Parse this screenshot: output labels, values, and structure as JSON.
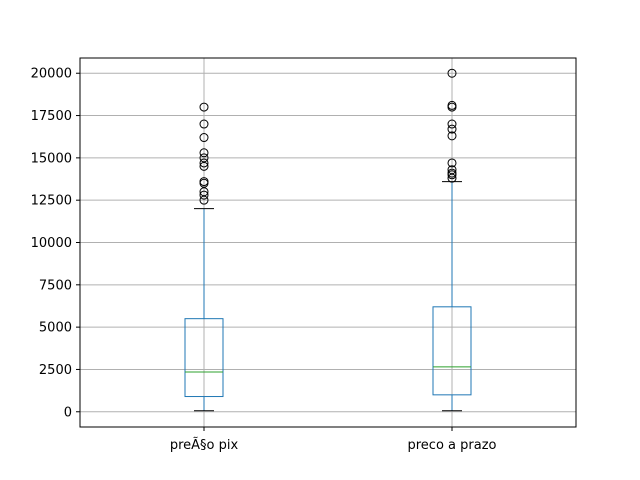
{
  "chart_data": {
    "type": "box",
    "categories": [
      "preÃ§o pix",
      "preco a prazo"
    ],
    "ylim": [
      -900,
      20900
    ],
    "yticks": [
      0,
      2500,
      5000,
      7500,
      10000,
      12500,
      15000,
      17500,
      20000
    ],
    "ytick_labels": [
      "0",
      "2500",
      "5000",
      "7500",
      "10000",
      "12500",
      "15000",
      "17500",
      "20000"
    ],
    "grid": true,
    "boxes": [
      {
        "name": "preÃ§o pix",
        "whisker_low": 60,
        "q1": 900,
        "median": 2350,
        "q3": 5500,
        "whisker_high": 12000,
        "outliers": [
          12500,
          12800,
          13000,
          13500,
          13600,
          14500,
          14700,
          15000,
          15300,
          16200,
          17000,
          18000
        ]
      },
      {
        "name": "preco a prazo",
        "whisker_low": 60,
        "q1": 1000,
        "median": 2650,
        "q3": 6200,
        "whisker_high": 13600,
        "outliers": [
          13800,
          14000,
          14100,
          14300,
          14700,
          16300,
          16700,
          17000,
          18000,
          18100,
          20000
        ]
      }
    ],
    "colors": {
      "box": "#1f77b4",
      "median": "#2ca02c",
      "whisker_cap": "#000000",
      "outlier": "#000000",
      "grid": "#b0b0b0"
    }
  }
}
